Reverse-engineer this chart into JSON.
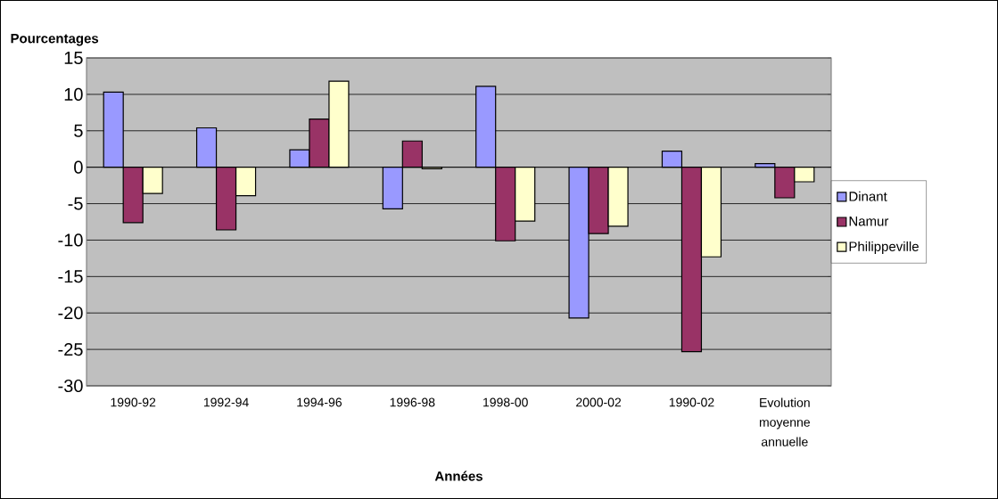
{
  "chart_data": {
    "type": "bar",
    "ylabel": "Pourcentages",
    "xlabel": "Années",
    "categories": [
      "1990-92",
      "1992-94",
      "1994-96",
      "1996-98",
      "1998-00",
      "2000-02",
      "1990-02",
      "Evolution moyenne annuelle"
    ],
    "series": [
      {
        "name": "Dinant",
        "color": "#9999ff",
        "values": [
          10.3,
          5.4,
          2.4,
          -5.7,
          11.1,
          -20.7,
          2.2,
          0.5
        ]
      },
      {
        "name": "Namur",
        "color": "#993366",
        "values": [
          -7.6,
          -8.6,
          6.6,
          3.6,
          -10.1,
          -9.1,
          -25.3,
          -4.2
        ]
      },
      {
        "name": "Philippeville",
        "color": "#ffffcc",
        "values": [
          -3.6,
          -3.9,
          11.8,
          -0.2,
          -7.4,
          -8.1,
          -12.3,
          -2.0
        ]
      }
    ],
    "ylim": [
      -30,
      15
    ],
    "yticks": [
      -30,
      -25,
      -20,
      -15,
      -10,
      -5,
      0,
      5,
      10,
      15
    ],
    "grid": "y",
    "legend": "right"
  }
}
